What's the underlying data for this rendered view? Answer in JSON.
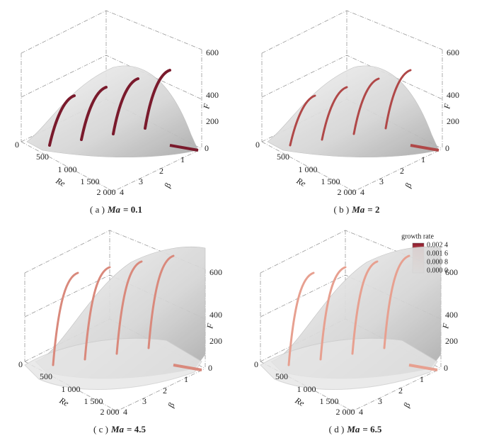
{
  "panels": [
    {
      "caption": {
        "label": "( a )",
        "var": "Ma",
        "eq": "= 0.1"
      },
      "re_ticks": [
        "0",
        "500",
        "1 000",
        "1 500",
        "2 000"
      ],
      "re_label": "Re",
      "beta_ticks": [
        "4",
        "3",
        "2",
        "1"
      ],
      "beta_label": "β",
      "f_ticks": [
        "600",
        "400",
        "200",
        "0"
      ],
      "f_label": "F"
    },
    {
      "caption": {
        "label": "( b )",
        "var": "Ma",
        "eq": "= 2"
      },
      "re_ticks": [
        "0",
        "500",
        "1 000",
        "1 500",
        "2 000"
      ],
      "re_label": "Re",
      "beta_ticks": [
        "4",
        "3",
        "2",
        "1"
      ],
      "beta_label": "β",
      "f_ticks": [
        "600",
        "400",
        "200",
        "0"
      ],
      "f_label": "F"
    },
    {
      "caption": {
        "label": "( c )",
        "var": "Ma",
        "eq": "= 4.5"
      },
      "re_ticks": [
        "0",
        "500",
        "1 000",
        "1 500",
        "2 000"
      ],
      "re_label": "Re",
      "beta_ticks": [
        "4",
        "3",
        "2",
        "1"
      ],
      "beta_label": "β",
      "f_ticks": [
        "600",
        "400",
        "200",
        "0"
      ],
      "f_label": "F"
    },
    {
      "caption": {
        "label": "( d )",
        "var": "Ma",
        "eq": "= 6.5"
      },
      "re_ticks": [
        "0",
        "500",
        "1 000",
        "1 500",
        "2 000"
      ],
      "re_label": "Re",
      "beta_ticks": [
        "4",
        "3",
        "2",
        "1"
      ],
      "beta_label": "β",
      "f_ticks": [
        "600",
        "400",
        "200",
        "0"
      ],
      "f_label": "F"
    }
  ],
  "colorbar": {
    "title": "growth rate",
    "ticks": [
      "0.002 4",
      "0.001 6",
      "0.000 8",
      "0.000 0"
    ]
  }
}
